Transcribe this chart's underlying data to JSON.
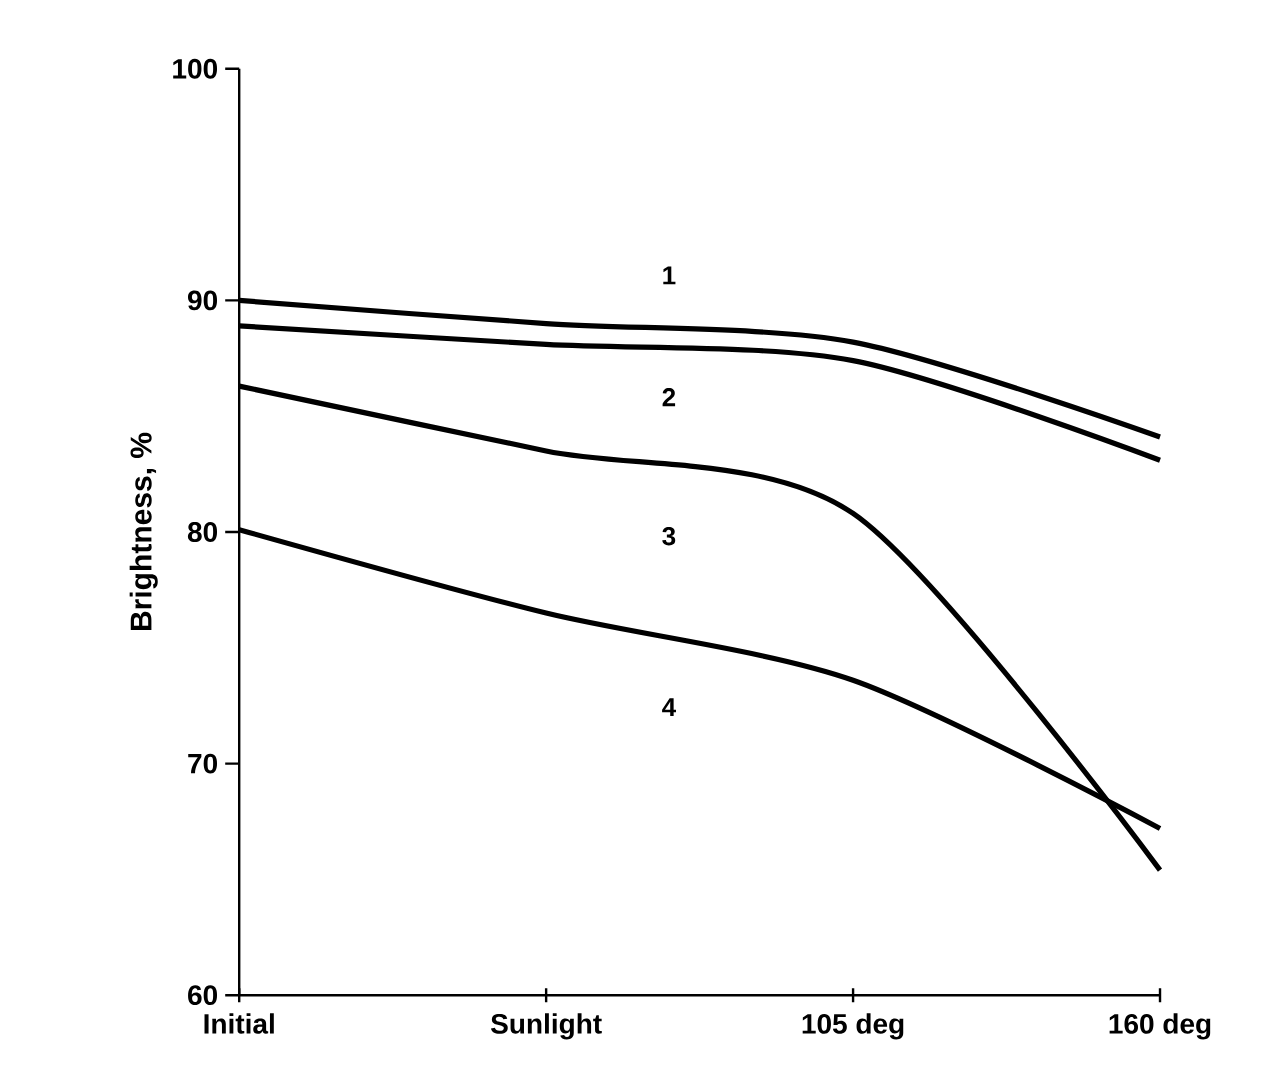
{
  "chart_data": {
    "type": "line",
    "categories": [
      "Initial",
      "Sunlight",
      "105 deg",
      "160 deg"
    ],
    "ylabel": "Brightness, %",
    "ylim": [
      60,
      100
    ],
    "yticks": [
      60,
      70,
      80,
      90,
      100
    ],
    "marker": "none",
    "line_style": "solid",
    "series": [
      {
        "name": "1",
        "color": "#000000",
        "values": [
          90.0,
          89.0,
          88.2,
          84.1
        ]
      },
      {
        "name": "2",
        "color": "#000000",
        "values": [
          88.9,
          88.1,
          87.4,
          83.1
        ]
      },
      {
        "name": "3",
        "color": "#000000",
        "values": [
          86.3,
          83.5,
          80.8,
          65.4
        ]
      },
      {
        "name": "4",
        "color": "#000000",
        "values": [
          80.1,
          76.5,
          73.6,
          67.2
        ]
      }
    ]
  }
}
